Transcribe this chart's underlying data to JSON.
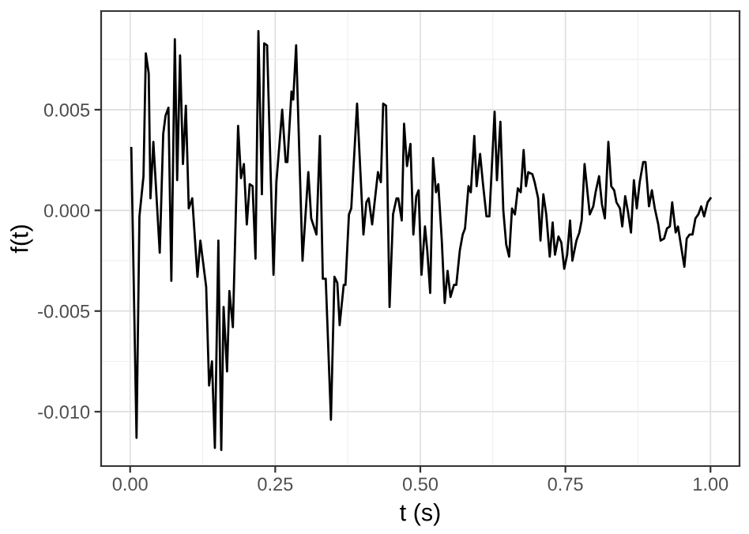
{
  "chart_data": {
    "type": "line",
    "xlabel": "t (s)",
    "ylabel": "f(t)",
    "xlim": [
      -0.05,
      1.05
    ],
    "ylim": [
      -0.0127,
      0.0099
    ],
    "xticks": [
      {
        "value": 0,
        "label": "0.00"
      },
      {
        "value": 0.125,
        "label": null
      },
      {
        "value": 0.25,
        "label": "0.25"
      },
      {
        "value": 0.375,
        "label": null
      },
      {
        "value": 0.5,
        "label": "0.50"
      },
      {
        "value": 0.625,
        "label": null
      },
      {
        "value": 0.75,
        "label": "0.75"
      },
      {
        "value": 0.875,
        "label": null
      },
      {
        "value": 1,
        "label": "1.00"
      }
    ],
    "yticks": [
      {
        "value": -0.01,
        "label": "-0.010"
      },
      {
        "value": -0.0075,
        "label": null
      },
      {
        "value": -0.005,
        "label": "-0.005"
      },
      {
        "value": -0.0025,
        "label": null
      },
      {
        "value": 0,
        "label": "0.000"
      },
      {
        "value": 0.0025,
        "label": null
      },
      {
        "value": 0.005,
        "label": "0.005"
      },
      {
        "value": 0.0075,
        "label": null
      }
    ],
    "grid": true,
    "legend": false,
    "marker": "none",
    "line_style": "solid",
    "series": [
      {
        "color": "#000000",
        "x": [
          0.002,
          0.011,
          0.016,
          0.023,
          0.027,
          0.032,
          0.035,
          0.04,
          0.051,
          0.057,
          0.061,
          0.066,
          0.071,
          0.077,
          0.081,
          0.086,
          0.091,
          0.096,
          0.101,
          0.107,
          0.116,
          0.121,
          0.131,
          0.136,
          0.141,
          0.146,
          0.152,
          0.157,
          0.161,
          0.167,
          0.171,
          0.177,
          0.186,
          0.191,
          0.196,
          0.201,
          0.206,
          0.211,
          0.216,
          0.221,
          0.227,
          0.231,
          0.236,
          0.247,
          0.252,
          0.262,
          0.268,
          0.271,
          0.278,
          0.281,
          0.286,
          0.297,
          0.307,
          0.312,
          0.321,
          0.327,
          0.332,
          0.337,
          0.346,
          0.352,
          0.357,
          0.361,
          0.368,
          0.371,
          0.377,
          0.381,
          0.391,
          0.402,
          0.407,
          0.411,
          0.417,
          0.427,
          0.432,
          0.436,
          0.441,
          0.447,
          0.453,
          0.459,
          0.462,
          0.468,
          0.472,
          0.477,
          0.483,
          0.488,
          0.493,
          0.497,
          0.502,
          0.508,
          0.512,
          0.517,
          0.522,
          0.527,
          0.531,
          0.537,
          0.542,
          0.547,
          0.552,
          0.558,
          0.562,
          0.568,
          0.573,
          0.577,
          0.583,
          0.587,
          0.593,
          0.597,
          0.603,
          0.608,
          0.614,
          0.619,
          0.628,
          0.632,
          0.638,
          0.643,
          0.648,
          0.653,
          0.658,
          0.663,
          0.668,
          0.673,
          0.678,
          0.682,
          0.686,
          0.693,
          0.697,
          0.703,
          0.707,
          0.712,
          0.717,
          0.723,
          0.728,
          0.732,
          0.738,
          0.743,
          0.748,
          0.753,
          0.758,
          0.762,
          0.769,
          0.774,
          0.778,
          0.783,
          0.792,
          0.798,
          0.802,
          0.808,
          0.813,
          0.818,
          0.824,
          0.829,
          0.834,
          0.838,
          0.844,
          0.848,
          0.853,
          0.858,
          0.863,
          0.868,
          0.873,
          0.878,
          0.884,
          0.888,
          0.894,
          0.899,
          0.904,
          0.91,
          0.914,
          0.92,
          0.925,
          0.93,
          0.934,
          0.94,
          0.944,
          0.95,
          0.955,
          0.959,
          0.964,
          0.969,
          0.974,
          0.979,
          0.984,
          0.989,
          0.995,
          1.0
        ],
        "values": [
          0.0031,
          -0.0113,
          -0.0003,
          0.0017,
          0.0078,
          0.0068,
          0.0006,
          0.0034,
          -0.0021,
          0.0038,
          0.0047,
          0.0051,
          -0.0035,
          0.0085,
          0.0015,
          0.0077,
          0.0023,
          0.0052,
          0.0001,
          0.0006,
          -0.0033,
          -0.0015,
          -0.0038,
          -0.0087,
          -0.0075,
          -0.0118,
          -0.0015,
          -0.0119,
          -0.0048,
          -0.008,
          -0.004,
          -0.0058,
          0.0042,
          0.0016,
          0.0023,
          -0.0007,
          0.0013,
          0.0012,
          -0.0024,
          0.0089,
          0.0008,
          0.0083,
          0.0082,
          -0.0032,
          0.0014,
          0.005,
          0.0024,
          0.0024,
          0.0059,
          0.0055,
          0.0082,
          -0.0025,
          0.0019,
          -0.0004,
          -0.0012,
          0.0037,
          -0.0034,
          -0.0034,
          -0.0104,
          -0.0033,
          -0.0036,
          -0.0057,
          -0.0037,
          -0.0037,
          -0.0002,
          0.0001,
          0.0053,
          -0.0012,
          0.0004,
          0.0006,
          -0.0007,
          0.0019,
          0.0014,
          0.0053,
          0.0052,
          -0.0048,
          -0.0002,
          0.0006,
          0.0006,
          -0.0005,
          0.0043,
          0.0022,
          0.0033,
          -0.0012,
          0.0007,
          0.001,
          -0.0032,
          -0.0008,
          -0.002,
          -0.0041,
          0.0026,
          0.0009,
          0.0013,
          -0.0015,
          -0.0046,
          -0.003,
          -0.0043,
          -0.0037,
          -0.0037,
          -0.002,
          -0.0012,
          -0.0009,
          0.0012,
          0.0009,
          0.0037,
          0.0012,
          0.0028,
          0.0013,
          -0.0003,
          -0.0003,
          0.0049,
          0.0015,
          0.0044,
          0.0,
          -0.0017,
          -0.0023,
          0.0001,
          -0.0002,
          0.0011,
          0.0009,
          0.003,
          0.0012,
          0.0019,
          0.0018,
          0.0014,
          0.0006,
          -0.0015,
          0.0008,
          -0.0002,
          -0.0023,
          -0.0006,
          -0.0022,
          -0.0013,
          -0.0016,
          -0.0029,
          -0.0022,
          -0.0005,
          -0.0025,
          -0.0015,
          -0.0011,
          -0.0005,
          0.0023,
          -0.0002,
          0.0002,
          0.0009,
          0.0017,
          0.0003,
          -0.0004,
          0.0034,
          0.0012,
          0.001,
          0.0004,
          0.0001,
          -0.0008,
          0.0007,
          -0.0001,
          -0.0011,
          0.0015,
          0.0001,
          0.0014,
          0.0024,
          0.0024,
          0.0002,
          0.001,
          0.0001,
          -0.0007,
          -0.0015,
          -0.0014,
          -0.0009,
          -0.0008,
          0.0004,
          -0.0011,
          -0.0008,
          -0.0019,
          -0.0028,
          -0.0014,
          -0.0012,
          -0.0012,
          -0.0004,
          -0.0002,
          0.0002,
          -0.0003,
          0.0004,
          0.0006
        ]
      }
    ]
  }
}
